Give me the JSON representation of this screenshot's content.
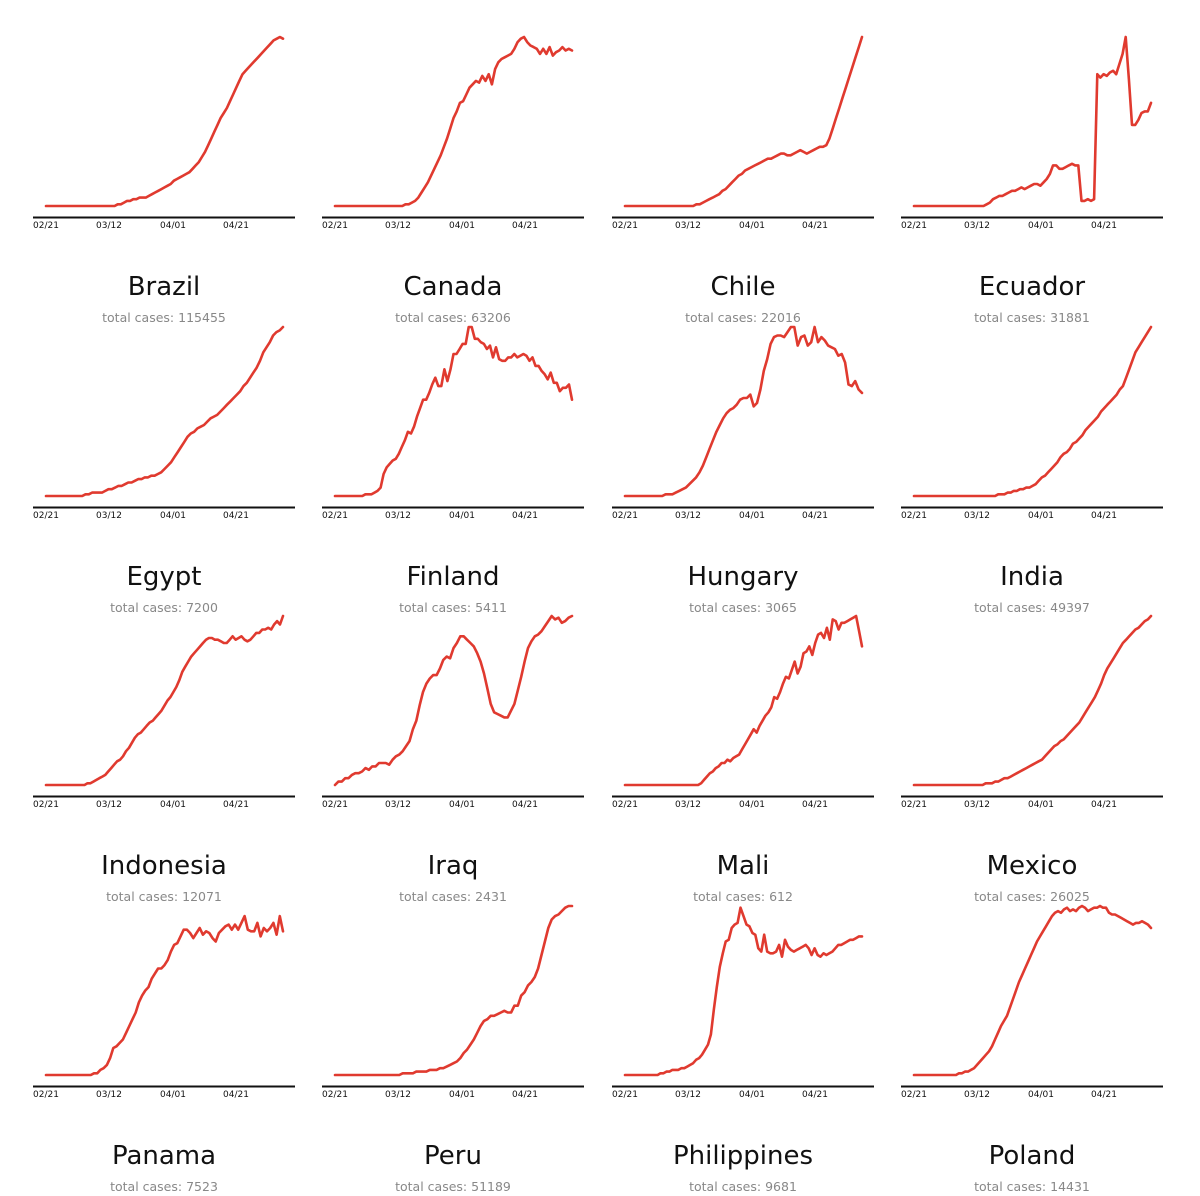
{
  "label_prefix": "total cases:",
  "colors": {
    "line": "#e03a2f",
    "axis": "#111111",
    "label": "#888888"
  },
  "chart_data": [
    {
      "type": "line",
      "title": "Brazil",
      "total_cases": "115455",
      "x_ticks": [
        "02/21",
        "03/12",
        "04/01",
        "04/21"
      ],
      "y": [
        0,
        0,
        0,
        0,
        0,
        0,
        0,
        0,
        0,
        0,
        0,
        0,
        0,
        0,
        0,
        0,
        0,
        0,
        0,
        0,
        0,
        0,
        0,
        1,
        1,
        2,
        3,
        3,
        4,
        4,
        5,
        5,
        5,
        6,
        7,
        8,
        9,
        10,
        11,
        12,
        13,
        15,
        16,
        17,
        18,
        19,
        20,
        22,
        24,
        26,
        29,
        32,
        36,
        40,
        44,
        48,
        52,
        55,
        58,
        62,
        66,
        70,
        74,
        78,
        80,
        82,
        84,
        86,
        88,
        90,
        92,
        94,
        96,
        98,
        99,
        100,
        99
      ]
    },
    {
      "type": "line",
      "title": "Canada",
      "total_cases": "63206",
      "x_ticks": [
        "02/21",
        "03/12",
        "04/01",
        "04/21"
      ],
      "y": [
        0,
        0,
        0,
        0,
        0,
        0,
        0,
        0,
        0,
        0,
        0,
        0,
        0,
        0,
        0,
        0,
        0,
        0,
        0,
        0,
        0,
        0,
        1,
        1,
        2,
        3,
        5,
        8,
        11,
        14,
        18,
        22,
        26,
        30,
        35,
        40,
        46,
        52,
        56,
        61,
        62,
        66,
        70,
        72,
        74,
        73,
        77,
        74,
        78,
        72,
        81,
        85,
        87,
        88,
        89,
        90,
        93,
        97,
        99,
        100,
        97,
        95,
        94,
        93,
        90,
        93,
        90,
        94,
        89,
        91,
        92,
        94,
        92,
        93,
        92
      ]
    },
    {
      "type": "line",
      "title": "Chile",
      "total_cases": "22016",
      "x_ticks": [
        "02/21",
        "03/12",
        "04/01",
        "04/21"
      ],
      "y": [
        0,
        0,
        0,
        0,
        0,
        0,
        0,
        0,
        0,
        0,
        0,
        0,
        0,
        0,
        0,
        0,
        0,
        0,
        0,
        0,
        0,
        0,
        1,
        1,
        2,
        3,
        4,
        5,
        6,
        7,
        9,
        10,
        12,
        14,
        16,
        18,
        19,
        21,
        22,
        23,
        24,
        25,
        26,
        27,
        28,
        28,
        29,
        30,
        31,
        31,
        30,
        30,
        31,
        32,
        33,
        32,
        31,
        32,
        33,
        34,
        35,
        35,
        36,
        40,
        46,
        52,
        58,
        64,
        70,
        76,
        82,
        88,
        94,
        100
      ]
    },
    {
      "type": "line",
      "title": "Ecuador",
      "total_cases": "31881",
      "x_ticks": [
        "02/21",
        "03/12",
        "04/01",
        "04/21"
      ],
      "y": [
        0,
        0,
        0,
        0,
        0,
        0,
        0,
        0,
        0,
        0,
        0,
        0,
        0,
        0,
        0,
        0,
        0,
        0,
        0,
        0,
        0,
        0,
        0,
        1,
        2,
        4,
        5,
        6,
        6,
        7,
        8,
        9,
        9,
        10,
        11,
        10,
        11,
        12,
        13,
        13,
        12,
        14,
        16,
        19,
        24,
        24,
        22,
        22,
        23,
        24,
        25,
        24,
        24,
        3,
        3,
        4,
        3,
        4,
        78,
        76,
        78,
        77,
        79,
        80,
        78,
        84,
        90,
        100,
        75,
        48,
        48,
        51,
        55,
        56,
        56,
        61
      ]
    },
    {
      "type": "line",
      "title": "Egypt",
      "total_cases": "7200",
      "x_ticks": [
        "02/21",
        "03/12",
        "04/01",
        "04/21"
      ],
      "y": [
        0,
        0,
        0,
        0,
        0,
        0,
        0,
        0,
        0,
        0,
        0,
        0,
        1,
        1,
        2,
        2,
        2,
        2,
        3,
        4,
        4,
        5,
        6,
        6,
        7,
        8,
        8,
        9,
        10,
        10,
        11,
        11,
        12,
        12,
        13,
        14,
        16,
        18,
        20,
        23,
        26,
        29,
        32,
        35,
        37,
        38,
        40,
        41,
        42,
        44,
        46,
        47,
        48,
        50,
        52,
        54,
        56,
        58,
        60,
        62,
        65,
        67,
        70,
        73,
        76,
        80,
        85,
        88,
        91,
        95,
        97,
        98,
        100
      ]
    },
    {
      "type": "line",
      "title": "Finland",
      "total_cases": "5411",
      "x_ticks": [
        "02/21",
        "03/12",
        "04/01",
        "04/21"
      ],
      "y": [
        0,
        0,
        0,
        0,
        0,
        0,
        0,
        0,
        0,
        0,
        1,
        1,
        1,
        2,
        3,
        5,
        13,
        17,
        19,
        21,
        22,
        25,
        29,
        33,
        38,
        37,
        41,
        47,
        52,
        57,
        57,
        61,
        66,
        70,
        65,
        65,
        75,
        68,
        75,
        84,
        84,
        87,
        90,
        90,
        100,
        100,
        93,
        93,
        91,
        90,
        87,
        89,
        82,
        88,
        81,
        80,
        80,
        82,
        82,
        84,
        82,
        83,
        84,
        83,
        80,
        82,
        77,
        77,
        74,
        72,
        69,
        73,
        67,
        67,
        62,
        64,
        64,
        66,
        57
      ]
    },
    {
      "type": "line",
      "title": "Hungary",
      "total_cases": "3065",
      "x_ticks": [
        "02/21",
        "03/12",
        "04/01",
        "04/21"
      ],
      "y": [
        0,
        0,
        0,
        0,
        0,
        0,
        0,
        0,
        0,
        0,
        0,
        0,
        1,
        1,
        1,
        2,
        3,
        4,
        5,
        7,
        9,
        11,
        14,
        18,
        23,
        28,
        33,
        38,
        42,
        46,
        49,
        51,
        52,
        54,
        57,
        58,
        58,
        60,
        53,
        55,
        63,
        74,
        81,
        90,
        94,
        95,
        95,
        94,
        97,
        100,
        100,
        89,
        94,
        95,
        89,
        91,
        100,
        91,
        94,
        92,
        89,
        88,
        87,
        83,
        84,
        79,
        66,
        65,
        68,
        63,
        61
      ]
    },
    {
      "type": "line",
      "title": "India",
      "total_cases": "49397",
      "x_ticks": [
        "02/21",
        "03/12",
        "04/01",
        "04/21"
      ],
      "y": [
        0,
        0,
        0,
        0,
        0,
        0,
        0,
        0,
        0,
        0,
        0,
        0,
        0,
        0,
        0,
        0,
        0,
        0,
        0,
        0,
        0,
        0,
        0,
        0,
        0,
        0,
        0,
        1,
        1,
        1,
        2,
        2,
        3,
        3,
        4,
        4,
        5,
        5,
        6,
        7,
        9,
        11,
        12,
        14,
        16,
        18,
        20,
        23,
        25,
        26,
        28,
        31,
        32,
        34,
        36,
        39,
        41,
        43,
        45,
        47,
        50,
        52,
        54,
        56,
        58,
        60,
        63,
        65,
        70,
        75,
        80,
        85,
        88,
        91,
        94,
        97,
        100
      ]
    },
    {
      "type": "line",
      "title": "Indonesia",
      "total_cases": "12071",
      "x_ticks": [
        "02/21",
        "03/12",
        "04/01",
        "04/21"
      ],
      "y": [
        0,
        0,
        0,
        0,
        0,
        0,
        0,
        0,
        0,
        0,
        0,
        0,
        0,
        0,
        1,
        1,
        2,
        3,
        4,
        5,
        6,
        8,
        10,
        12,
        14,
        15,
        17,
        20,
        22,
        25,
        28,
        30,
        31,
        33,
        35,
        37,
        38,
        40,
        42,
        44,
        47,
        50,
        52,
        55,
        58,
        62,
        67,
        70,
        73,
        76,
        78,
        80,
        82,
        84,
        86,
        87,
        87,
        86,
        86,
        85,
        84,
        84,
        86,
        88,
        86,
        87,
        88,
        86,
        85,
        86,
        88,
        90,
        90,
        92,
        92,
        93,
        92,
        95,
        97,
        95,
        100
      ]
    },
    {
      "type": "line",
      "title": "Iraq",
      "total_cases": "2431",
      "x_ticks": [
        "02/21",
        "03/12",
        "04/01",
        "04/21"
      ],
      "y": [
        0,
        2,
        2,
        4,
        4,
        6,
        7,
        7,
        8,
        10,
        9,
        11,
        11,
        13,
        13,
        13,
        12,
        15,
        17,
        18,
        20,
        23,
        26,
        33,
        38,
        47,
        55,
        60,
        63,
        65,
        65,
        69,
        74,
        76,
        75,
        81,
        84,
        88,
        88,
        86,
        84,
        82,
        78,
        73,
        66,
        57,
        48,
        43,
        42,
        41,
        40,
        40,
        44,
        48,
        56,
        64,
        73,
        81,
        85,
        88,
        89,
        91,
        94,
        97,
        100,
        98,
        99,
        96,
        97,
        99,
        100
      ]
    },
    {
      "type": "line",
      "title": "Mali",
      "total_cases": "612",
      "x_ticks": [
        "02/21",
        "03/12",
        "04/01",
        "04/21"
      ],
      "y": [
        0,
        0,
        0,
        0,
        0,
        0,
        0,
        0,
        0,
        0,
        0,
        0,
        0,
        0,
        0,
        0,
        0,
        0,
        0,
        0,
        0,
        0,
        0,
        0,
        0,
        0,
        1,
        3,
        5,
        7,
        8,
        10,
        11,
        13,
        13,
        15,
        14,
        16,
        17,
        18,
        21,
        24,
        27,
        30,
        33,
        31,
        35,
        38,
        41,
        43,
        46,
        52,
        51,
        55,
        60,
        64,
        63,
        68,
        73,
        66,
        70,
        78,
        79,
        82,
        77,
        84,
        89,
        90,
        87,
        93,
        86,
        98,
        97,
        92,
        96,
        96,
        97,
        98,
        99,
        100,
        91,
        82
      ]
    },
    {
      "type": "line",
      "title": "Mexico",
      "total_cases": "26025",
      "x_ticks": [
        "02/21",
        "03/12",
        "04/01",
        "04/21"
      ],
      "y": [
        0,
        0,
        0,
        0,
        0,
        0,
        0,
        0,
        0,
        0,
        0,
        0,
        0,
        0,
        0,
        0,
        0,
        0,
        0,
        0,
        0,
        0,
        0,
        1,
        1,
        1,
        2,
        2,
        3,
        4,
        4,
        5,
        6,
        7,
        8,
        9,
        10,
        11,
        12,
        13,
        14,
        15,
        17,
        19,
        21,
        23,
        24,
        26,
        27,
        29,
        31,
        33,
        35,
        37,
        40,
        43,
        46,
        49,
        52,
        56,
        60,
        65,
        69,
        72,
        75,
        78,
        81,
        84,
        86,
        88,
        90,
        92,
        93,
        95,
        97,
        98,
        100
      ]
    },
    {
      "type": "line",
      "title": "Panama",
      "total_cases": "7523",
      "x_ticks": [
        "02/21",
        "03/12",
        "04/01",
        "04/21"
      ],
      "y": [
        0,
        0,
        0,
        0,
        0,
        0,
        0,
        0,
        0,
        0,
        0,
        0,
        0,
        0,
        0,
        1,
        1,
        3,
        4,
        6,
        10,
        16,
        17,
        19,
        21,
        25,
        29,
        33,
        37,
        43,
        47,
        50,
        52,
        57,
        60,
        63,
        63,
        65,
        68,
        73,
        77,
        78,
        82,
        86,
        86,
        84,
        81,
        84,
        87,
        83,
        85,
        84,
        81,
        79,
        84,
        86,
        88,
        89,
        86,
        89,
        86,
        90,
        94,
        86,
        85,
        85,
        90,
        82,
        87,
        85,
        87,
        90,
        83,
        94,
        85
      ]
    },
    {
      "type": "line",
      "title": "Peru",
      "total_cases": "51189",
      "x_ticks": [
        "02/21",
        "03/12",
        "04/01",
        "04/21"
      ],
      "y": [
        0,
        0,
        0,
        0,
        0,
        0,
        0,
        0,
        0,
        0,
        0,
        0,
        0,
        0,
        0,
        0,
        0,
        0,
        0,
        0,
        1,
        1,
        1,
        1,
        2,
        2,
        2,
        2,
        3,
        3,
        3,
        4,
        4,
        5,
        6,
        7,
        8,
        10,
        13,
        15,
        18,
        21,
        25,
        29,
        32,
        33,
        35,
        35,
        36,
        37,
        38,
        37,
        37,
        41,
        41,
        47,
        49,
        53,
        55,
        58,
        63,
        71,
        79,
        87,
        92,
        94,
        95,
        97,
        99,
        100,
        100
      ]
    },
    {
      "type": "line",
      "title": "Philippines",
      "total_cases": "9681",
      "x_ticks": [
        "02/21",
        "03/12",
        "04/01",
        "04/21"
      ],
      "y": [
        0,
        0,
        0,
        0,
        0,
        0,
        0,
        0,
        0,
        0,
        0,
        0,
        1,
        1,
        2,
        2,
        3,
        3,
        3,
        4,
        4,
        5,
        6,
        7,
        9,
        10,
        12,
        15,
        18,
        24,
        39,
        52,
        64,
        72,
        79,
        80,
        87,
        89,
        90,
        99,
        94,
        89,
        88,
        84,
        83,
        75,
        73,
        83,
        73,
        72,
        72,
        73,
        77,
        70,
        80,
        76,
        74,
        73,
        74,
        75,
        76,
        77,
        75,
        71,
        75,
        71,
        70,
        72,
        71,
        72,
        73,
        75,
        77,
        77,
        78,
        79,
        80,
        80,
        81,
        82,
        82
      ]
    },
    {
      "type": "line",
      "title": "Poland",
      "total_cases": "14431",
      "x_ticks": [
        "02/21",
        "03/12",
        "04/01",
        "04/21"
      ],
      "y": [
        0,
        0,
        0,
        0,
        0,
        0,
        0,
        0,
        0,
        0,
        0,
        0,
        0,
        0,
        0,
        1,
        1,
        2,
        2,
        3,
        4,
        6,
        8,
        10,
        12,
        14,
        17,
        21,
        25,
        29,
        32,
        35,
        40,
        45,
        50,
        55,
        59,
        63,
        67,
        71,
        75,
        79,
        82,
        85,
        88,
        91,
        94,
        96,
        97,
        96,
        98,
        99,
        97,
        98,
        97,
        99,
        100,
        99,
        97,
        98,
        99,
        99,
        100,
        99,
        99,
        96,
        95,
        95,
        94,
        93,
        92,
        91,
        90,
        89,
        90,
        90,
        91,
        90,
        89,
        87
      ]
    }
  ]
}
